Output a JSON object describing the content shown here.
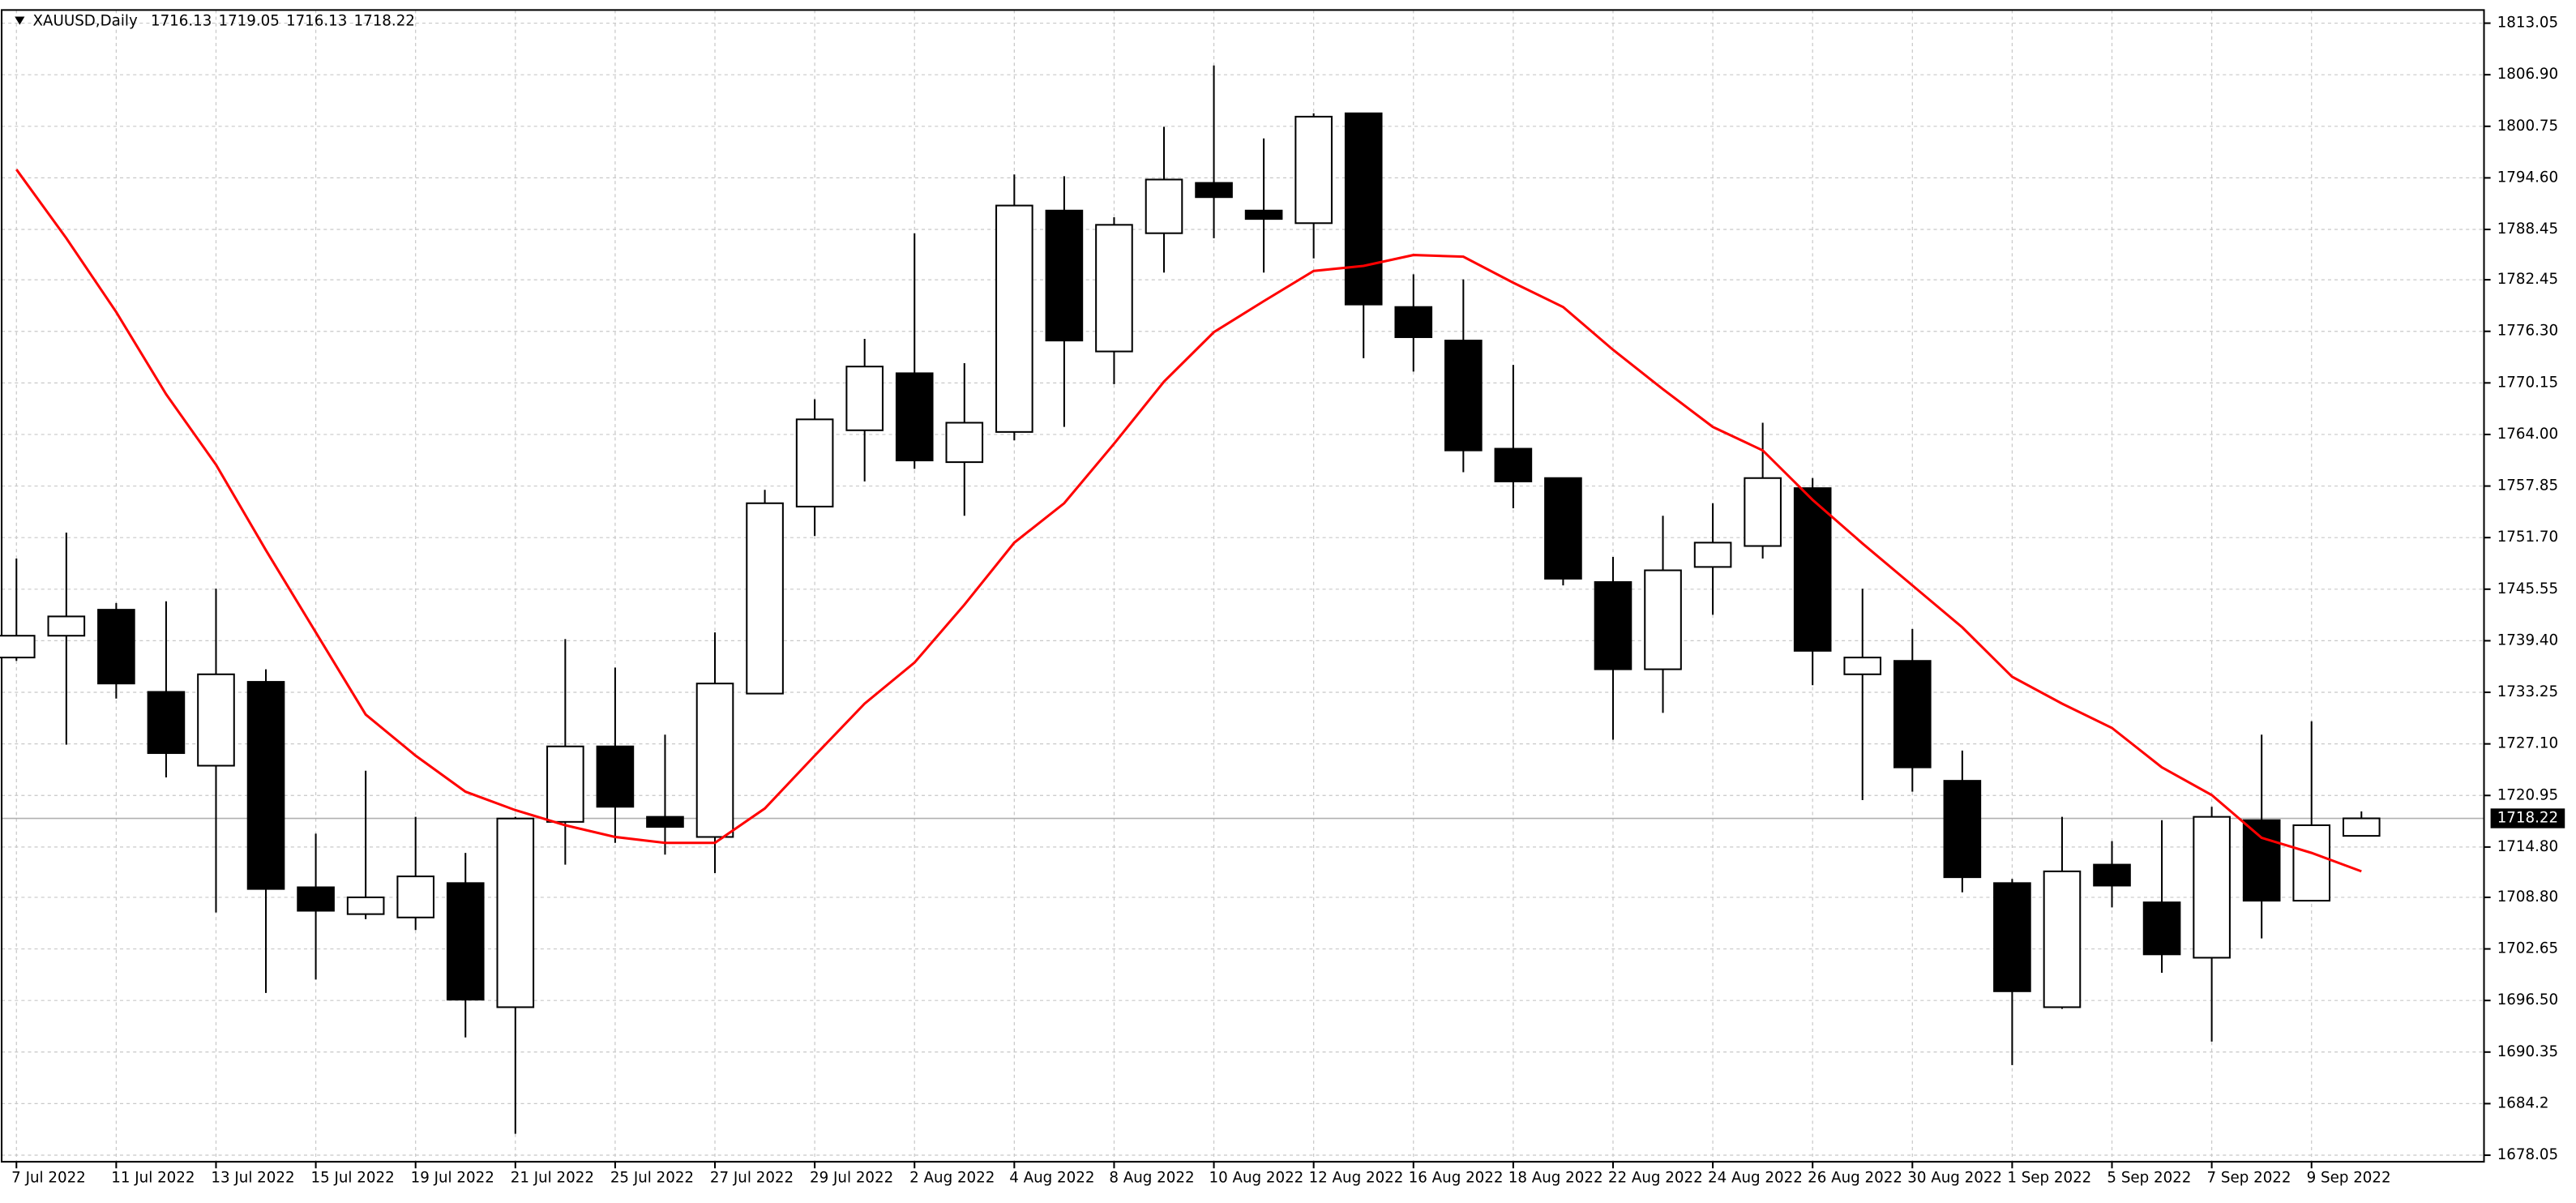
{
  "chart_data": {
    "type": "candlestick",
    "header": {
      "symbol": "XAUUSD,Daily",
      "ohlc": [
        1716.13,
        1719.05,
        1716.13,
        1718.22
      ]
    },
    "categories": [
      "7 Jul 2022",
      null,
      "11 Jul 2022",
      null,
      "13 Jul 2022",
      null,
      "15 Jul 2022",
      null,
      "19 Jul 2022",
      null,
      "21 Jul 2022",
      null,
      "25 Jul 2022",
      null,
      "27 Jul 2022",
      null,
      "29 Jul 2022",
      null,
      "2 Aug 2022",
      null,
      "4 Aug 2022",
      null,
      "8 Aug 2022",
      null,
      "10 Aug 2022",
      null,
      "12 Aug 2022",
      null,
      "16 Aug 2022",
      null,
      "18 Aug 2022",
      null,
      "22 Aug 2022",
      null,
      "24 Aug 2022",
      null,
      "26 Aug 2022",
      null,
      "30 Aug 2022",
      null,
      "1 Sep 2022",
      null,
      "5 Sep 2022",
      null,
      "7 Sep 2022",
      null,
      "9 Sep 2022",
      null
    ],
    "open": [
      1737.4,
      1740.0,
      1743.1,
      1733.3,
      1724.5,
      1734.5,
      1710.0,
      1706.8,
      1706.4,
      1710.5,
      1695.7,
      1717.8,
      1726.8,
      1718.4,
      1716.0,
      1733.1,
      1755.4,
      1764.5,
      1771.3,
      1760.7,
      1764.3,
      1790.7,
      1773.9,
      1788.0,
      1794.0,
      1790.7,
      1789.2,
      1802.3,
      1779.2,
      1775.2,
      1762.3,
      1758.8,
      1746.4,
      1736.0,
      1748.2,
      1750.7,
      1757.6,
      1735.4,
      1737.0,
      1722.7,
      1710.5,
      1695.7,
      1712.7,
      1708.2,
      1701.6,
      1718.0,
      1708.4,
      1716.13
    ],
    "high": [
      1749.2,
      1752.3,
      1743.9,
      1744.1,
      1745.6,
      1736.0,
      1716.4,
      1723.9,
      1718.4,
      1714.1,
      1718.4,
      1739.6,
      1736.2,
      1728.2,
      1740.4,
      1757.4,
      1768.2,
      1775.4,
      1788.0,
      1772.5,
      1795.0,
      1794.8,
      1789.9,
      1800.7,
      1808.0,
      1799.3,
      1802.3,
      1802.3,
      1783.1,
      1782.5,
      1772.3,
      1758.8,
      1749.4,
      1754.3,
      1755.8,
      1765.4,
      1758.8,
      1745.6,
      1740.8,
      1726.3,
      1711.0,
      1718.4,
      1715.5,
      1718.0,
      1719.6,
      1728.2,
      1729.8,
      1719.05
    ],
    "low": [
      1737.0,
      1727.0,
      1732.5,
      1723.1,
      1707.0,
      1697.4,
      1699.0,
      1706.2,
      1704.9,
      1692.1,
      1680.6,
      1712.7,
      1715.3,
      1713.9,
      1711.7,
      1733.1,
      1751.9,
      1758.4,
      1759.9,
      1754.3,
      1763.3,
      1764.9,
      1770.0,
      1783.3,
      1787.4,
      1783.3,
      1785.0,
      1773.1,
      1771.5,
      1759.5,
      1755.2,
      1746.0,
      1727.6,
      1730.8,
      1742.5,
      1749.2,
      1734.1,
      1720.4,
      1721.4,
      1709.4,
      1688.8,
      1695.5,
      1707.6,
      1699.8,
      1691.6,
      1703.9,
      1708.4,
      1716.13
    ],
    "close": [
      1740.0,
      1742.3,
      1734.3,
      1726.0,
      1735.4,
      1709.8,
      1707.2,
      1708.8,
      1711.3,
      1696.6,
      1718.2,
      1726.8,
      1719.6,
      1717.2,
      1734.3,
      1755.8,
      1765.8,
      1772.1,
      1760.9,
      1765.4,
      1791.3,
      1775.2,
      1789.0,
      1794.4,
      1792.3,
      1789.7,
      1801.9,
      1779.5,
      1775.6,
      1762.1,
      1758.4,
      1746.8,
      1736.0,
      1747.8,
      1751.1,
      1758.8,
      1738.2,
      1737.4,
      1724.3,
      1711.2,
      1697.6,
      1711.9,
      1710.2,
      1702.0,
      1718.4,
      1708.4,
      1717.4,
      1718.22
    ],
    "up_color": "#ffffff",
    "down_color": "#000000",
    "moving_average": {
      "color": "#ff0000",
      "values": [
        1795.6,
        1787.4,
        1778.6,
        1768.8,
        1760.4,
        1750.2,
        1740.4,
        1730.6,
        1725.7,
        1721.4,
        1719.2,
        1717.4,
        1716.0,
        1715.3,
        1715.3,
        1719.4,
        1725.7,
        1731.9,
        1736.8,
        1743.7,
        1751.1,
        1755.8,
        1762.9,
        1770.3,
        1776.2,
        1779.9,
        1783.5,
        1784.1,
        1785.4,
        1785.2,
        1782.1,
        1779.2,
        1774.1,
        1769.4,
        1764.9,
        1762.1,
        1756.2,
        1751.0,
        1746.0,
        1741.0,
        1735.1,
        1731.9,
        1729.0,
        1724.3,
        1721.0,
        1715.9,
        1714.1,
        1711.9
      ]
    },
    "last_price": 1718.22,
    "ylim": [
      1678.05,
      1813.05
    ],
    "yticks": [
      1678.05,
      1684.2,
      {
        "value": 1690.35,
        "label": "1690.35"
      },
      {
        "value": 1696.5,
        "label": "1696.50"
      },
      1702.65,
      {
        "value": 1708.8,
        "label": "1708.80"
      },
      {
        "value": 1714.8,
        "label": "1714.80"
      },
      1720.95,
      {
        "value": 1727.1,
        "label": "1727.10"
      },
      1733.25,
      {
        "value": 1739.4,
        "label": "1739.40"
      },
      1745.55,
      {
        "value": 1751.7,
        "label": "1751.70"
      },
      1757.85,
      {
        "value": 1764,
        "label": "1764.00"
      },
      1770.15,
      {
        "value": 1776.3,
        "label": "1776.30"
      },
      1782.45,
      1788.45,
      {
        "value": 1794.6,
        "label": "1794.60"
      },
      1800.75,
      {
        "value": 1806.9,
        "label": "1806.90"
      },
      1813.05
    ],
    "grid": true
  }
}
